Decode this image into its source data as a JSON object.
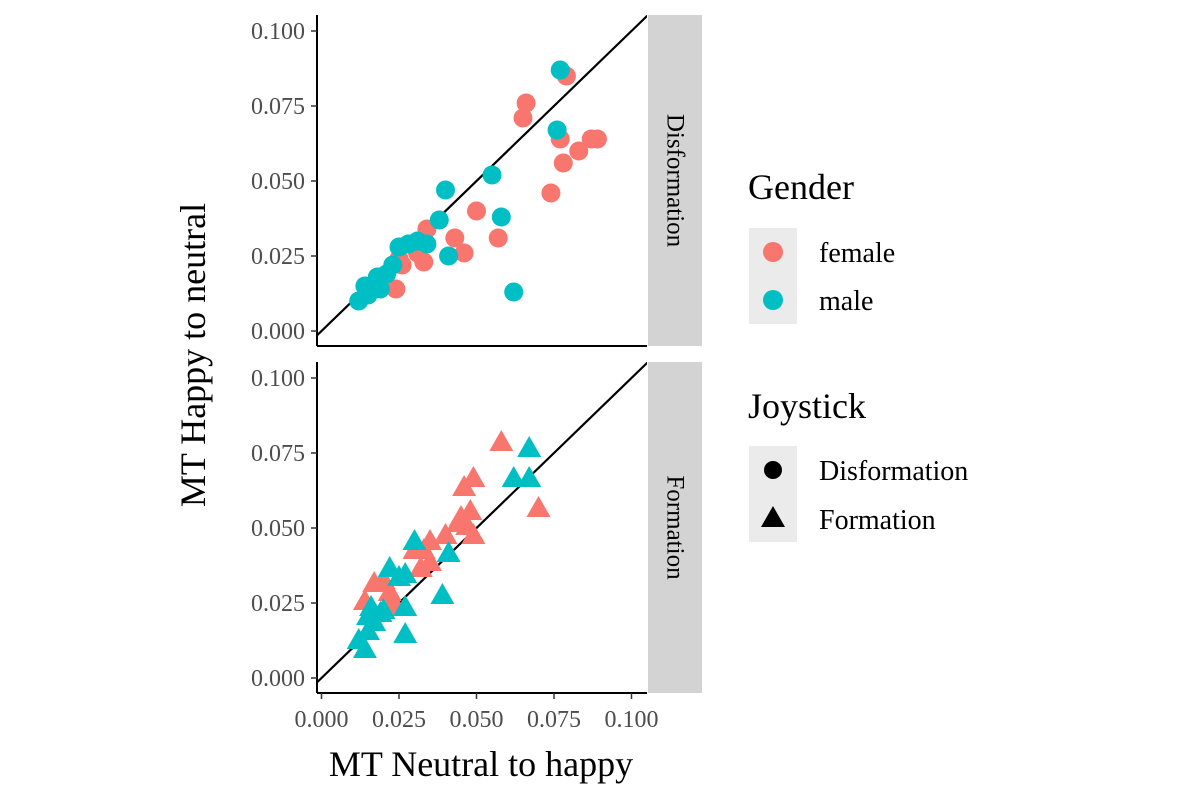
{
  "chart_data": {
    "type": "scatter",
    "xlabel": "MT Neutral to happy",
    "ylabel": "MT Happy to neutral",
    "xlim": [
      0.0,
      0.1
    ],
    "ylim": [
      0.0,
      0.1
    ],
    "x_ticks": [
      "0.000",
      "0.025",
      "0.050",
      "0.075",
      "0.100"
    ],
    "y_ticks": [
      "0.000",
      "0.025",
      "0.050",
      "0.075",
      "0.100"
    ],
    "x_tick_values": [
      0,
      0.025,
      0.05,
      0.075,
      0.1
    ],
    "y_tick_values": [
      0,
      0.025,
      0.05,
      0.075,
      0.1
    ],
    "reference_line": "y = x",
    "colors": {
      "female": "#F8766D",
      "male": "#00BFC4",
      "strip_bg": "#D3D3D3",
      "legend_key_bg": "#EBEBEB"
    },
    "panels": [
      {
        "strip": "Disformation",
        "shape": "circle",
        "series": [
          {
            "name": "female",
            "points": [
              [
                0.079,
                0.085
              ],
              [
                0.066,
                0.076
              ],
              [
                0.065,
                0.071
              ],
              [
                0.089,
                0.064
              ],
              [
                0.087,
                0.064
              ],
              [
                0.077,
                0.064
              ],
              [
                0.083,
                0.06
              ],
              [
                0.078,
                0.056
              ],
              [
                0.074,
                0.046
              ],
              [
                0.05,
                0.04
              ],
              [
                0.034,
                0.034
              ],
              [
                0.043,
                0.031
              ],
              [
                0.057,
                0.031
              ],
              [
                0.046,
                0.026
              ],
              [
                0.031,
                0.026
              ],
              [
                0.025,
                0.024
              ],
              [
                0.026,
                0.022
              ],
              [
                0.033,
                0.023
              ],
              [
                0.024,
                0.014
              ]
            ]
          },
          {
            "name": "male",
            "points": [
              [
                0.077,
                0.087
              ],
              [
                0.076,
                0.067
              ],
              [
                0.055,
                0.052
              ],
              [
                0.04,
                0.047
              ],
              [
                0.058,
                0.038
              ],
              [
                0.038,
                0.037
              ],
              [
                0.034,
                0.029
              ],
              [
                0.031,
                0.03
              ],
              [
                0.028,
                0.029
              ],
              [
                0.025,
                0.028
              ],
              [
                0.041,
                0.025
              ],
              [
                0.023,
                0.022
              ],
              [
                0.021,
                0.019
              ],
              [
                0.018,
                0.018
              ],
              [
                0.016,
                0.015
              ],
              [
                0.019,
                0.014
              ],
              [
                0.014,
                0.015
              ],
              [
                0.015,
                0.012
              ],
              [
                0.012,
                0.01
              ],
              [
                0.062,
                0.013
              ]
            ]
          }
        ]
      },
      {
        "strip": "Formation",
        "shape": "triangle",
        "series": [
          {
            "name": "female",
            "points": [
              [
                0.058,
                0.078
              ],
              [
                0.049,
                0.066
              ],
              [
                0.046,
                0.063
              ],
              [
                0.048,
                0.055
              ],
              [
                0.045,
                0.053
              ],
              [
                0.044,
                0.051
              ],
              [
                0.047,
                0.05
              ],
              [
                0.04,
                0.047
              ],
              [
                0.035,
                0.045
              ],
              [
                0.049,
                0.047
              ],
              [
                0.033,
                0.042
              ],
              [
                0.03,
                0.042
              ],
              [
                0.035,
                0.038
              ],
              [
                0.032,
                0.036
              ],
              [
                0.02,
                0.032
              ],
              [
                0.017,
                0.031
              ],
              [
                0.022,
                0.028
              ],
              [
                0.014,
                0.025
              ],
              [
                0.023,
                0.025
              ],
              [
                0.024,
                0.023
              ],
              [
                0.07,
                0.056
              ]
            ]
          },
          {
            "name": "male",
            "points": [
              [
                0.067,
                0.076
              ],
              [
                0.062,
                0.066
              ],
              [
                0.067,
                0.066
              ],
              [
                0.03,
                0.045
              ],
              [
                0.041,
                0.041
              ],
              [
                0.022,
                0.036
              ],
              [
                0.027,
                0.034
              ],
              [
                0.025,
                0.033
              ],
              [
                0.039,
                0.027
              ],
              [
                0.027,
                0.023
              ],
              [
                0.016,
                0.023
              ],
              [
                0.019,
                0.021
              ],
              [
                0.015,
                0.02
              ],
              [
                0.017,
                0.018
              ],
              [
                0.015,
                0.015
              ],
              [
                0.027,
                0.014
              ],
              [
                0.012,
                0.012
              ],
              [
                0.014,
                0.009
              ],
              [
                0.02,
                0.022
              ]
            ]
          }
        ]
      }
    ],
    "legend": {
      "position": "right",
      "gender": {
        "title": "Gender",
        "items": [
          "female",
          "male"
        ]
      },
      "joystick": {
        "title": "Joystick",
        "items": [
          "Disformation",
          "Formation"
        ]
      }
    }
  }
}
